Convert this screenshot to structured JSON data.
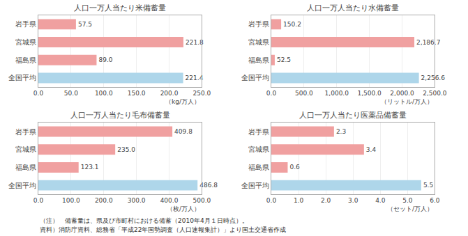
{
  "chart_data": [
    {
      "type": "bar",
      "orientation": "horizontal",
      "title": "人口一万人当たり米備蓄量",
      "xlabel": "（kg/万人）",
      "categories": [
        "岩手県",
        "宮城県",
        "福島県",
        "全国平均"
      ],
      "values": [
        57.5,
        221.8,
        89.0,
        221.4
      ],
      "value_labels": [
        "57.5",
        "221.8",
        "89.0",
        "221.4"
      ],
      "data_labels": true,
      "colors": [
        "#f0a0a0",
        "#f0a0a0",
        "#f0a0a0",
        "#aed6ea"
      ],
      "xlim": [
        0,
        250.0
      ],
      "xticks": [
        {
          "value": 0,
          "label": "0.0"
        },
        {
          "value": 50,
          "label": "50.0"
        },
        {
          "value": 100,
          "label": "100.0"
        },
        {
          "value": 150,
          "label": "150.0"
        },
        {
          "value": 200,
          "label": "200.0"
        },
        {
          "value": 250,
          "label": "250.0"
        }
      ],
      "grid": true
    },
    {
      "type": "bar",
      "orientation": "horizontal",
      "title": "人口一万人当たり水備蓄量",
      "xlabel": "（リットル/万人）",
      "categories": [
        "岩手県",
        "宮城県",
        "福島県",
        "全国平均"
      ],
      "values": [
        150.2,
        2186.7,
        52.5,
        2256.6
      ],
      "value_labels": [
        "150.2",
        "2,186.7",
        "52.5",
        "2,256.6"
      ],
      "data_labels": true,
      "colors": [
        "#f0a0a0",
        "#f0a0a0",
        "#f0a0a0",
        "#aed6ea"
      ],
      "xlim": [
        0,
        2500.0
      ],
      "xticks": [
        {
          "value": 0,
          "label": "0.0"
        },
        {
          "value": 500,
          "label": "500.0"
        },
        {
          "value": 1000,
          "label": "1,000.0"
        },
        {
          "value": 1500,
          "label": "1,500.0"
        },
        {
          "value": 2000,
          "label": "2,000.0"
        },
        {
          "value": 2500,
          "label": "2,500.0"
        }
      ],
      "grid": true
    },
    {
      "type": "bar",
      "orientation": "horizontal",
      "title": "人口一万人当たり毛布備蓄量",
      "xlabel": "（枚/万人）",
      "categories": [
        "岩手県",
        "宮城県",
        "福島県",
        "全国平均"
      ],
      "values": [
        409.8,
        235.0,
        123.1,
        486.8
      ],
      "value_labels": [
        "409.8",
        "235.0",
        "123.1",
        "486.8"
      ],
      "data_labels": true,
      "colors": [
        "#f0a0a0",
        "#f0a0a0",
        "#f0a0a0",
        "#aed6ea"
      ],
      "xlim": [
        0,
        500.0
      ],
      "xticks": [
        {
          "value": 0,
          "label": "0.0"
        },
        {
          "value": 100,
          "label": "100.0"
        },
        {
          "value": 200,
          "label": "200.0"
        },
        {
          "value": 300,
          "label": "300.0"
        },
        {
          "value": 400,
          "label": "400.0"
        },
        {
          "value": 500,
          "label": "500.0"
        }
      ],
      "grid": true
    },
    {
      "type": "bar",
      "orientation": "horizontal",
      "title": "人口一万人当たり医薬品備蓄量",
      "xlabel": "（セット/万人）",
      "categories": [
        "岩手県",
        "宮城県",
        "福島県",
        "全国平均"
      ],
      "values": [
        2.3,
        3.4,
        0.6,
        5.5
      ],
      "value_labels": [
        "2.3",
        "3.4",
        "0.6",
        "5.5"
      ],
      "data_labels": true,
      "colors": [
        "#f0a0a0",
        "#f0a0a0",
        "#f0a0a0",
        "#aed6ea"
      ],
      "xlim": [
        0,
        6.0
      ],
      "xticks": [
        {
          "value": 0,
          "label": "0.0"
        },
        {
          "value": 1,
          "label": "1.0"
        },
        {
          "value": 2,
          "label": "2.0"
        },
        {
          "value": 3,
          "label": "3.0"
        },
        {
          "value": 4,
          "label": "4.0"
        },
        {
          "value": 5,
          "label": "5.0"
        },
        {
          "value": 6,
          "label": "6.0"
        }
      ],
      "grid": true
    }
  ],
  "annotations": [
    "（注）　備蓄量は、県及び市町村における備蓄（2010年4月１日時点）。",
    "資料）消防庁資料、総務省「平成22年国勢調査（人口速報集計）」より国土交通省作成"
  ]
}
